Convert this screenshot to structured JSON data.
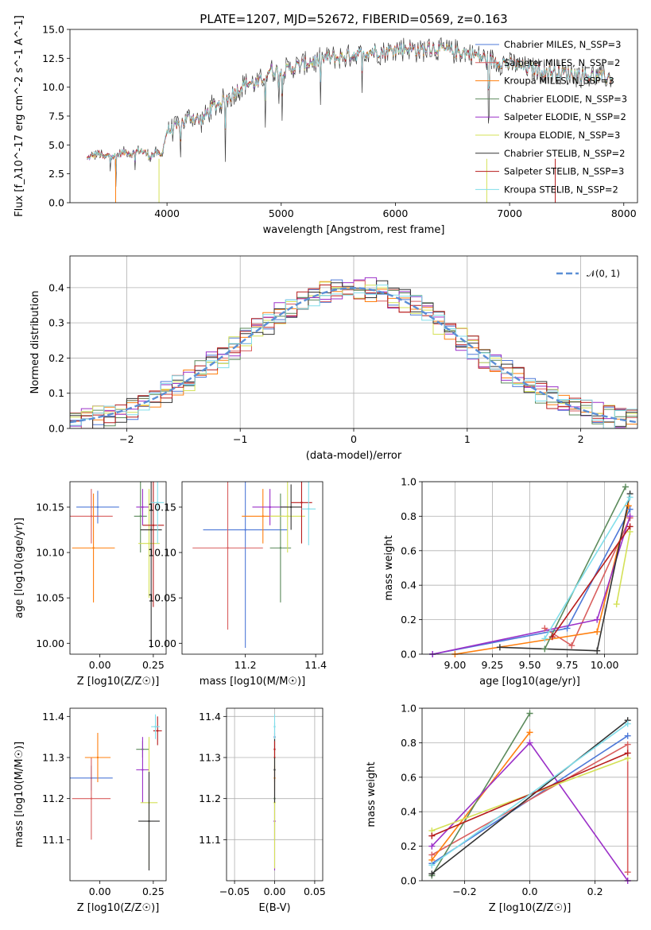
{
  "chart_data": [
    {
      "type": "line",
      "title": "PLATE=1207, MJD=52672, FIBERID=0569, z=0.163",
      "xlabel": "wavelength [Angstrom, rest frame]",
      "ylabel": "Flux [f_λ10^-17 erg cm^-2 s^-1 A^-1]",
      "xlim": [
        3150,
        8120
      ],
      "ylim": [
        0,
        15
      ],
      "xticks": [
        "4000",
        "5000",
        "6000",
        "7000",
        "8000"
      ],
      "yticks": [
        "0.0",
        "2.5",
        "5.0",
        "7.5",
        "10.0",
        "12.5",
        "15.0"
      ],
      "legend_position": "right",
      "grid": false,
      "series": [
        {
          "name": "Chabrier MILES, N_SSP=3",
          "color": "#4e79d8"
        },
        {
          "name": "Salpeter MILES, N_SSP=2",
          "color": "#d95f5f"
        },
        {
          "name": "Kroupa MILES, N_SSP=3",
          "color": "#ff7f0e"
        },
        {
          "name": "Chabrier ELODIE, N_SSP=3",
          "color": "#5b8a5b"
        },
        {
          "name": "Salpeter ELODIE, N_SSP=2",
          "color": "#9b30c8"
        },
        {
          "name": "Kroupa ELODIE, N_SSP=3",
          "color": "#d4e157"
        },
        {
          "name": "Chabrier STELIB, N_SSP=2",
          "color": "#333333"
        },
        {
          "name": "Salpeter STELIB, N_SSP=3",
          "color": "#b71c1c"
        },
        {
          "name": "Kroupa STELIB, N_SSP=2",
          "color": "#80deea"
        }
      ],
      "spectrum": {
        "wavelength": [
          3300,
          3350,
          3400,
          3450,
          3500,
          3550,
          3600,
          3650,
          3700,
          3750,
          3800,
          3850,
          3900,
          3950,
          4000,
          4100,
          4200,
          4300,
          4400,
          4500,
          4600,
          4700,
          4800,
          4900,
          5000,
          5100,
          5200,
          5300,
          5400,
          5500,
          5600,
          5700,
          5800,
          5900,
          6000,
          6100,
          6200,
          6300,
          6400,
          6500,
          6600,
          6700,
          6800,
          6900,
          7000,
          7100,
          7200,
          7300,
          7400,
          7500,
          7600,
          7700,
          7800,
          7900
        ],
        "flux": [
          3.8,
          4.1,
          4.3,
          3.9,
          4.2,
          4.0,
          4.3,
          4.4,
          4.2,
          4.5,
          4.4,
          4.0,
          4.3,
          4.1,
          6.2,
          6.6,
          7.5,
          7.1,
          8.3,
          8.8,
          9.6,
          10.4,
          10.3,
          11.5,
          11.3,
          11.7,
          12.0,
          12.3,
          12.6,
          12.5,
          12.8,
          12.9,
          13.1,
          13.0,
          13.3,
          13.4,
          13.2,
          13.4,
          13.3,
          13.1,
          13.0,
          12.8,
          12.4,
          12.2,
          12.0,
          11.8,
          11.6,
          11.4,
          11.3,
          11.2,
          11.1,
          11.0,
          10.9,
          10.8
        ]
      }
    },
    {
      "type": "bar",
      "xlabel": "(data-model)/error",
      "ylabel": "Normed distribution",
      "xlim": [
        -2.5,
        2.5
      ],
      "ylim": [
        0,
        0.49
      ],
      "xticks": [
        "−2",
        "−1",
        "0",
        "1",
        "2"
      ],
      "yticks": [
        "0.0",
        "0.1",
        "0.2",
        "0.3",
        "0.4"
      ],
      "grid": true,
      "legend": "𝒩(0, 1)",
      "legend_position": "top-right",
      "bin_width": 0.1,
      "gaussian": {
        "mean": 0,
        "sigma": 1
      }
    },
    {
      "type": "scatter",
      "xlabel": "Z [log10(Z/Z☉)]",
      "ylabel": "age  [log10(age/yr)]",
      "xlim": [
        -0.14,
        0.31
      ],
      "ylim": [
        9.988,
        10.178
      ],
      "xticks": [
        "0.00",
        "0.25"
      ],
      "yticks": [
        "10.00",
        "10.05",
        "10.10",
        "10.15"
      ],
      "grid": false,
      "points": [
        {
          "x": -0.01,
          "xerr": 0.1,
          "y": 10.15,
          "yerr": 0.018
        },
        {
          "x": -0.04,
          "xerr": 0.1,
          "y": 10.14,
          "yerr": 0.03
        },
        {
          "x": -0.03,
          "xerr": 0.1,
          "y": 10.105,
          "yerr": 0.06
        },
        {
          "x": 0.19,
          "xerr": 0.03,
          "y": 10.14,
          "yerr": 0.04
        },
        {
          "x": 0.2,
          "xerr": 0.03,
          "y": 10.15,
          "yerr": 0.02
        },
        {
          "x": 0.23,
          "xerr": 0.05,
          "y": 10.11,
          "yerr": 0.06
        },
        {
          "x": 0.24,
          "xerr": 0.05,
          "y": 10.125,
          "yerr": 0.13
        },
        {
          "x": 0.25,
          "xerr": 0.05,
          "y": 10.13,
          "yerr": 0.09
        },
        {
          "x": 0.27,
          "xerr": 0.03,
          "y": 10.155,
          "yerr": 0.045
        }
      ]
    },
    {
      "type": "scatter",
      "xlabel": "mass [log10(M/M☉)]",
      "xlim": [
        11.02,
        11.42
      ],
      "ylim": [
        9.988,
        10.178
      ],
      "xticks": [
        "11.2",
        "11.4"
      ],
      "yticks": [
        "10.00",
        "10.05",
        "10.10",
        "10.15"
      ],
      "grid": false,
      "points": [
        {
          "x": 11.2,
          "xerr": 0.12,
          "y": 10.125,
          "yerr": 0.13
        },
        {
          "x": 11.15,
          "xerr": 0.1,
          "y": 10.105,
          "yerr": 0.09
        },
        {
          "x": 11.25,
          "xerr": 0.06,
          "y": 10.14,
          "yerr": 0.03
        },
        {
          "x": 11.3,
          "xerr": 0.03,
          "y": 10.105,
          "yerr": 0.06
        },
        {
          "x": 11.27,
          "xerr": 0.05,
          "y": 10.15,
          "yerr": 0.02
        },
        {
          "x": 11.32,
          "xerr": 0.05,
          "y": 10.14,
          "yerr": 0.04
        },
        {
          "x": 11.33,
          "xerr": 0.03,
          "y": 10.15,
          "yerr": 0.025
        },
        {
          "x": 11.36,
          "xerr": 0.03,
          "y": 10.155,
          "yerr": 0.045
        },
        {
          "x": 11.38,
          "xerr": 0.02,
          "y": 10.148,
          "yerr": 0.04
        }
      ]
    },
    {
      "type": "line",
      "xlabel": "age  [log10(age/yr)]",
      "ylabel": "mass weight",
      "xlim": [
        8.78,
        10.22
      ],
      "ylim": [
        0,
        1
      ],
      "xticks": [
        "9.00",
        "9.25",
        "9.50",
        "9.75",
        "10.00"
      ],
      "yticks": [
        "0.0",
        "0.2",
        "0.4",
        "0.6",
        "0.8",
        "1.0"
      ],
      "grid": true,
      "series": [
        {
          "x": [
            8.85,
            9.75,
            10.17
          ],
          "y": [
            0.0,
            0.15,
            0.84
          ]
        },
        {
          "x": [
            9.6,
            9.78,
            10.17
          ],
          "y": [
            0.15,
            0.05,
            0.79
          ]
        },
        {
          "x": [
            9.0,
            9.95,
            10.16
          ],
          "y": [
            0.0,
            0.13,
            0.86
          ]
        },
        {
          "x": [
            9.6,
            10.14
          ],
          "y": [
            0.03,
            0.97
          ]
        },
        {
          "x": [
            8.85,
            9.95,
            10.17
          ],
          "y": [
            0.0,
            0.2,
            0.8
          ]
        },
        {
          "x": [
            10.08,
            10.17
          ],
          "y": [
            0.29,
            0.71
          ]
        },
        {
          "x": [
            9.3,
            9.95,
            10.17
          ],
          "y": [
            0.04,
            0.02,
            0.93
          ]
        },
        {
          "x": [
            9.65,
            10.17
          ],
          "y": [
            0.1,
            0.74
          ]
        },
        {
          "x": [
            9.6,
            10.17
          ],
          "y": [
            0.09,
            0.91
          ]
        }
      ]
    },
    {
      "type": "scatter",
      "xlabel": "Z [log10(Z/Z☉)]",
      "ylabel": "mass [log10(M/M☉)]",
      "xlim": [
        -0.14,
        0.31
      ],
      "ylim": [
        11.0,
        11.42
      ],
      "xticks": [
        "0.00",
        "0.25"
      ],
      "yticks": [
        "11.1",
        "11.2",
        "11.3",
        "11.4"
      ],
      "grid": false,
      "points": [
        {
          "x": -0.04,
          "xerr": 0.1,
          "y": 11.25,
          "yerr": 0.03
        },
        {
          "x": -0.04,
          "xerr": 0.09,
          "y": 11.2,
          "yerr": 0.1
        },
        {
          "x": -0.01,
          "xerr": 0.06,
          "y": 11.3,
          "yerr": 0.06
        },
        {
          "x": 0.2,
          "xerr": 0.03,
          "y": 11.32,
          "yerr": 0.02
        },
        {
          "x": 0.2,
          "xerr": 0.03,
          "y": 11.27,
          "yerr": 0.08
        },
        {
          "x": 0.23,
          "xerr": 0.04,
          "y": 11.19,
          "yerr": 0.16
        },
        {
          "x": 0.23,
          "xerr": 0.05,
          "y": 11.145,
          "yerr": 0.12
        },
        {
          "x": 0.27,
          "xerr": 0.02,
          "y": 11.365,
          "yerr": 0.035
        },
        {
          "x": 0.26,
          "xerr": 0.02,
          "y": 11.375,
          "yerr": 0.03
        }
      ]
    },
    {
      "type": "scatter",
      "xlabel": "E(B-V)",
      "xlim": [
        -0.06,
        0.06
      ],
      "ylim": [
        11.0,
        11.42
      ],
      "xticks": [
        "−0.05",
        "0.00",
        "0.05"
      ],
      "yticks": [
        "11.1",
        "11.2",
        "11.3",
        "11.4"
      ],
      "grid": true,
      "points": [
        {
          "x": 0.0,
          "y": 11.35,
          "yerr": 0.035
        },
        {
          "x": 0.0,
          "y": 11.3,
          "yerr": 0.06
        },
        {
          "x": 0.0,
          "y": 11.25,
          "yerr": 0.03
        },
        {
          "x": 0.0,
          "y": 11.2,
          "yerr": 0.1
        },
        {
          "x": 0.0,
          "y": 11.145,
          "yerr": 0.12
        },
        {
          "x": 0.0,
          "y": 11.19,
          "yerr": 0.16
        },
        {
          "x": 0.0,
          "y": 11.27,
          "yerr": 0.08
        },
        {
          "x": 0.0,
          "y": 11.32,
          "yerr": 0.02
        },
        {
          "x": 0.0,
          "y": 11.375,
          "yerr": 0.03
        }
      ]
    },
    {
      "type": "line",
      "xlabel": "Z [log10(Z/Z☉)]",
      "ylabel": "mass weight",
      "xlim": [
        -0.33,
        0.33
      ],
      "ylim": [
        0,
        1
      ],
      "xticks": [
        "−0.2",
        "0.0",
        "0.2"
      ],
      "yticks": [
        "0.0",
        "0.2",
        "0.4",
        "0.6",
        "0.8",
        "1.0"
      ],
      "grid": true,
      "series": [
        {
          "x": [
            -0.3,
            0.3
          ],
          "y": [
            0.1,
            0.84
          ]
        },
        {
          "x": [
            -0.3,
            0.3,
            0.3
          ],
          "y": [
            0.15,
            0.79,
            0.05
          ]
        },
        {
          "x": [
            -0.3,
            0.0
          ],
          "y": [
            0.12,
            0.86
          ]
        },
        {
          "x": [
            -0.3,
            0.0
          ],
          "y": [
            0.03,
            0.97
          ]
        },
        {
          "x": [
            -0.3,
            0.0,
            0.3
          ],
          "y": [
            0.2,
            0.8,
            0.0
          ]
        },
        {
          "x": [
            -0.3,
            0.3
          ],
          "y": [
            0.29,
            0.71
          ]
        },
        {
          "x": [
            -0.3,
            0.3
          ],
          "y": [
            0.04,
            0.93
          ]
        },
        {
          "x": [
            -0.3,
            0.3
          ],
          "y": [
            0.26,
            0.74
          ]
        },
        {
          "x": [
            -0.3,
            0.3
          ],
          "y": [
            0.09,
            0.91
          ]
        }
      ]
    }
  ]
}
